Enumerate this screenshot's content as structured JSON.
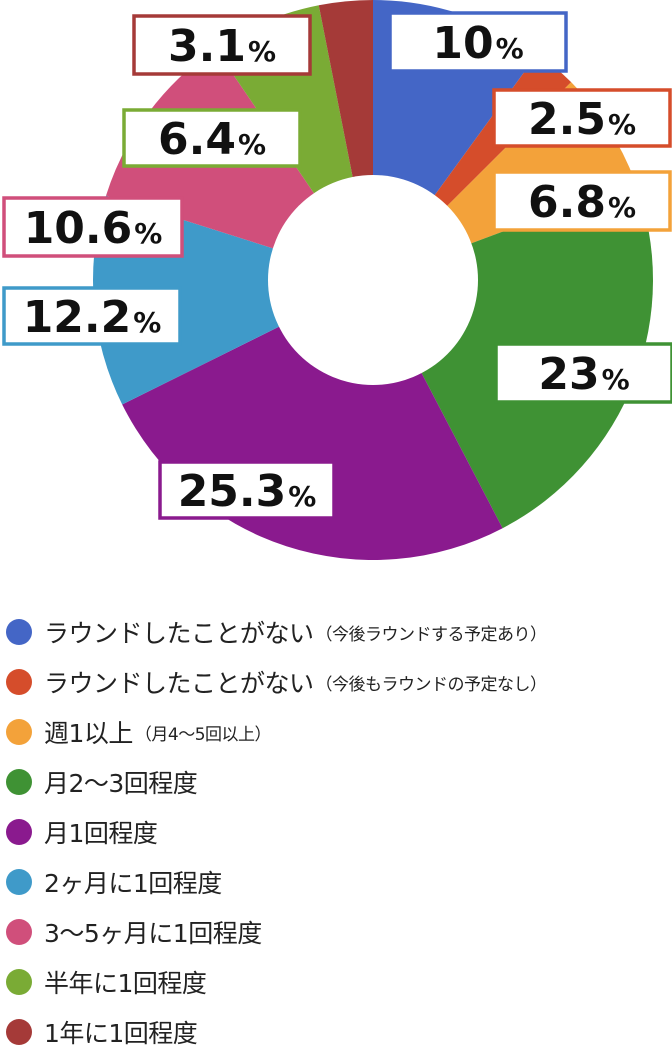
{
  "chart_data": {
    "type": "pie",
    "donut": true,
    "title": "",
    "slices": [
      {
        "label": "ラウンドしたことがない",
        "note": "（今後ラウンドする予定あり）",
        "value": 10,
        "value_text": "10",
        "color": "#4466c6"
      },
      {
        "label": "ラウンドしたことがない",
        "note": "（今後もラウンドの予定なし）",
        "value": 2.5,
        "value_text": "2.5",
        "color": "#d54d2b"
      },
      {
        "label": "週1以上",
        "note": "（月4〜5回以上）",
        "value": 6.8,
        "value_text": "6.8",
        "color": "#f3a23a"
      },
      {
        "label": "月2〜3回程度",
        "note": "",
        "value": 23,
        "value_text": "23",
        "color": "#3f9234"
      },
      {
        "label": "月1回程度",
        "note": "",
        "value": 25.3,
        "value_text": "25.3",
        "color": "#8a1a8e"
      },
      {
        "label": "2ヶ月に1回程度",
        "note": "",
        "value": 12.2,
        "value_text": "12.2",
        "color": "#3f9ac9"
      },
      {
        "label": "3〜5ヶ月に1回程度",
        "note": "",
        "value": 10.6,
        "value_text": "10.6",
        "color": "#d04f7b"
      },
      {
        "label": "半年に1回程度",
        "note": "",
        "value": 6.4,
        "value_text": "6.4",
        "color": "#7aab35"
      },
      {
        "label": "1年に1回程度",
        "note": "",
        "value": 3.1,
        "value_text": "3.1",
        "color": "#a53a38"
      }
    ],
    "unit": "%",
    "legend_position": "bottom"
  }
}
